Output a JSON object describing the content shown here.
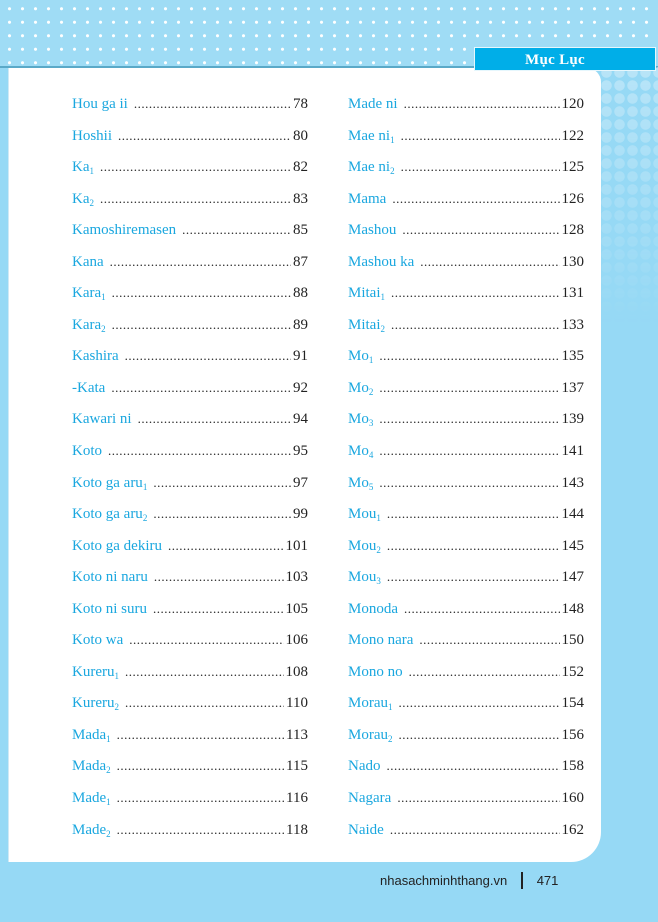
{
  "header": {
    "tab_title": "Mục Lục"
  },
  "left_entries": [
    {
      "name": "Hou ga ii",
      "sub": "",
      "page": "78"
    },
    {
      "name": "Hoshii",
      "sub": "",
      "page": "80"
    },
    {
      "name": "Ka",
      "sub": "1",
      "page": "82"
    },
    {
      "name": "Ka",
      "sub": "2",
      "page": "83"
    },
    {
      "name": "Kamoshiremasen",
      "sub": "",
      "page": "85"
    },
    {
      "name": "Kana",
      "sub": "",
      "page": "87"
    },
    {
      "name": "Kara",
      "sub": "1",
      "page": "88"
    },
    {
      "name": "Kara",
      "sub": "2",
      "page": "89"
    },
    {
      "name": "Kashira",
      "sub": "",
      "page": "91"
    },
    {
      "name": "-Kata",
      "sub": "",
      "page": "92"
    },
    {
      "name": "Kawari ni",
      "sub": "",
      "page": "94"
    },
    {
      "name": "Koto",
      "sub": "",
      "page": "95"
    },
    {
      "name": "Koto ga aru",
      "sub": "1",
      "page": "97"
    },
    {
      "name": "Koto ga aru",
      "sub": "2",
      "page": "99"
    },
    {
      "name": "Koto ga dekiru",
      "sub": "",
      "page": "101"
    },
    {
      "name": "Koto ni naru",
      "sub": "",
      "page": "103"
    },
    {
      "name": "Koto ni suru",
      "sub": "",
      "page": "105"
    },
    {
      "name": "Koto wa",
      "sub": "",
      "page": "106"
    },
    {
      "name": "Kureru",
      "sub": "1",
      "page": "108"
    },
    {
      "name": "Kureru",
      "sub": "2",
      "page": "110"
    },
    {
      "name": "Mada",
      "sub": "1",
      "page": "113"
    },
    {
      "name": "Mada",
      "sub": "2",
      "page": "115"
    },
    {
      "name": "Made",
      "sub": "1",
      "page": "116"
    },
    {
      "name": "Made",
      "sub": "2",
      "page": "118"
    }
  ],
  "right_entries": [
    {
      "name": "Made ni",
      "sub": "",
      "page": "120"
    },
    {
      "name": "Mae ni",
      "sub": "1",
      "page": "122"
    },
    {
      "name": "Mae ni",
      "sub": "2",
      "page": "125"
    },
    {
      "name": "Mama",
      "sub": "",
      "page": "126"
    },
    {
      "name": "Mashou",
      "sub": "",
      "page": "128"
    },
    {
      "name": "Mashou ka",
      "sub": "",
      "page": "130"
    },
    {
      "name": "Mitai",
      "sub": "1",
      "page": "131"
    },
    {
      "name": "Mitai",
      "sub": "2",
      "page": "133"
    },
    {
      "name": "Mo",
      "sub": "1",
      "page": "135"
    },
    {
      "name": "Mo",
      "sub": "2",
      "page": "137"
    },
    {
      "name": "Mo",
      "sub": "3",
      "page": "139"
    },
    {
      "name": "Mo",
      "sub": "4",
      "page": "141"
    },
    {
      "name": "Mo",
      "sub": "5",
      "page": "143"
    },
    {
      "name": "Mou",
      "sub": "1",
      "page": "144"
    },
    {
      "name": "Mou",
      "sub": "2",
      "page": "145"
    },
    {
      "name": "Mou",
      "sub": "3",
      "page": "147"
    },
    {
      "name": "Monoda",
      "sub": "",
      "page": "148"
    },
    {
      "name": "Mono nara",
      "sub": "",
      "page": "150"
    },
    {
      "name": "Mono no",
      "sub": "",
      "page": "152"
    },
    {
      "name": "Morau",
      "sub": "1",
      "page": "154"
    },
    {
      "name": "Morau",
      "sub": "2",
      "page": "156"
    },
    {
      "name": "Nado",
      "sub": "",
      "page": "158"
    },
    {
      "name": "Nagara",
      "sub": "",
      "page": "160"
    },
    {
      "name": "Naide",
      "sub": "",
      "page": "162"
    }
  ],
  "footer": {
    "website": "nhasachminhthang.vn",
    "page_number": "471"
  },
  "colors": {
    "accent": "#00aee8",
    "entry": "#1aa7df",
    "background": "#96d9f5"
  }
}
